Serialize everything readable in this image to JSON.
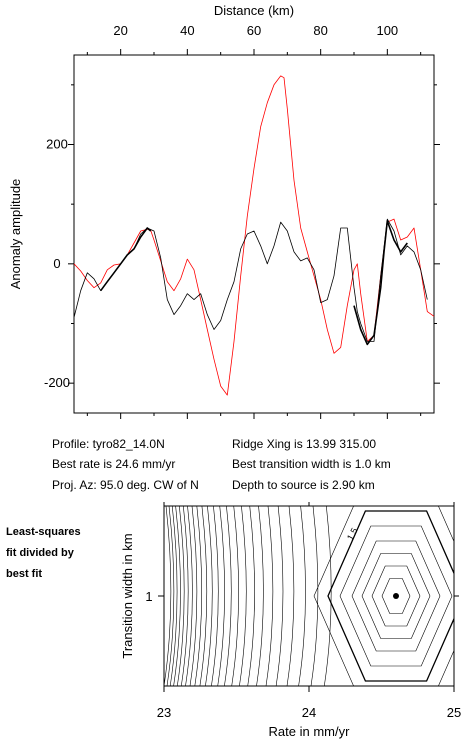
{
  "chart_data": [
    {
      "type": "line",
      "xlabel": "Distance (km)",
      "ylabel": "Anomaly amplitude",
      "xlim": [
        6,
        114
      ],
      "ylim": [
        -250,
        350
      ],
      "xticks": [
        20,
        40,
        60,
        80,
        100
      ],
      "yticks": [
        -200,
        0,
        200
      ],
      "grid": false,
      "series": [
        {
          "color": "#ff0000",
          "x": [
            6,
            8,
            10,
            12,
            14,
            16,
            18,
            20,
            22,
            24,
            26,
            28,
            29,
            30,
            32,
            34,
            36,
            38,
            40,
            42,
            44,
            46,
            48,
            50,
            52,
            54,
            56,
            58,
            60,
            62,
            64,
            66,
            68,
            69,
            70,
            72,
            74,
            76,
            78,
            80,
            82,
            84,
            86,
            88,
            90,
            91,
            92,
            94,
            96,
            98,
            100,
            102,
            104,
            106,
            108,
            110,
            112,
            114
          ],
          "y": [
            0,
            -12,
            -28,
            -40,
            -32,
            -10,
            -2,
            0,
            15,
            35,
            55,
            58,
            56,
            40,
            5,
            -30,
            -45,
            -25,
            8,
            -10,
            -60,
            -110,
            -160,
            -205,
            -220,
            -130,
            -20,
            80,
            160,
            230,
            270,
            300,
            315,
            312,
            260,
            140,
            60,
            20,
            -20,
            -60,
            -110,
            -150,
            -140,
            -70,
            -10,
            0,
            -50,
            -130,
            -120,
            -20,
            70,
            75,
            40,
            45,
            60,
            -10,
            -80,
            -88
          ]
        },
        {
          "color": "#000000",
          "x": [
            6,
            8,
            10,
            12,
            14,
            16,
            18,
            20,
            22,
            24,
            26,
            28,
            30,
            32,
            34,
            36,
            38,
            40,
            42,
            44,
            46,
            48,
            50,
            52,
            54,
            56,
            58,
            60,
            62,
            64,
            66,
            68,
            70,
            72,
            74,
            76,
            78,
            80,
            82,
            84,
            86,
            88,
            90,
            91,
            92,
            94,
            96,
            98,
            100,
            102,
            104,
            106,
            108,
            110,
            112
          ],
          "y": [
            -90,
            -45,
            -15,
            -25,
            -45,
            -30,
            -15,
            0,
            15,
            25,
            50,
            60,
            55,
            10,
            -60,
            -85,
            -70,
            -50,
            -60,
            -50,
            -85,
            -110,
            -95,
            -60,
            -30,
            25,
            50,
            55,
            30,
            0,
            30,
            70,
            55,
            20,
            5,
            10,
            -10,
            -65,
            -60,
            -20,
            60,
            60,
            -40,
            -80,
            -100,
            -130,
            -130,
            -20,
            75,
            55,
            15,
            30,
            20,
            -10,
            -60
          ]
        },
        {
          "color": "#000000",
          "x": [
            14,
            16,
            18,
            20,
            22,
            24,
            26,
            28,
            29
          ],
          "y": [
            -45,
            -30,
            -15,
            0,
            15,
            25,
            45,
            60,
            55
          ]
        },
        {
          "color": "#000000",
          "x": [
            90,
            92,
            94,
            96,
            98,
            99,
            100,
            102,
            104,
            106
          ],
          "y": [
            -70,
            -110,
            -135,
            -120,
            -40,
            20,
            72,
            40,
            20,
            35
          ]
        }
      ]
    },
    {
      "type": "contour",
      "xlabel": "Rate in mm/yr",
      "ylabel": "Transition width in km",
      "xlim": [
        23,
        25
      ],
      "ylim": [
        0.6,
        1.4
      ],
      "xticks": [
        23,
        24,
        25
      ],
      "yticks": [
        1
      ],
      "best_fit": {
        "x": 24.6,
        "y": 1.0
      },
      "contour_label": "1.5"
    }
  ],
  "info": {
    "profile": "Profile: tyro82_14.0N",
    "best_rate": "Best rate is 24.6 mm/yr",
    "proj_az": "Proj. Az: 95.0 deg. CW of N",
    "ridge_xing": "Ridge Xing is 13.99 315.00",
    "best_width": "Best transition width is 1.0 km",
    "depth": "Depth to source is   2.90 km"
  },
  "side_note": [
    "Least-squares",
    "fit divided by",
    "best fit"
  ]
}
